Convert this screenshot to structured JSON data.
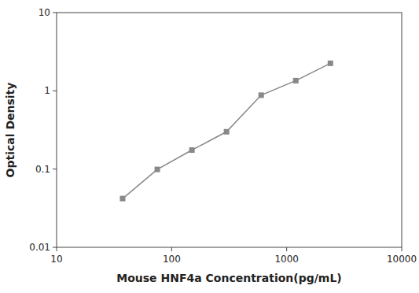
{
  "chart_data": {
    "type": "line",
    "x": [
      37.5,
      75,
      150,
      300,
      600,
      1200,
      2400
    ],
    "values": [
      0.042,
      0.099,
      0.175,
      0.3,
      0.88,
      1.35,
      2.25
    ],
    "xlabel": "Mouse HNF4a Concentration(pg/mL)",
    "ylabel": "Optical Density",
    "xlim": [
      10,
      10000
    ],
    "ylim": [
      0.01,
      10
    ],
    "xticks": [
      10,
      100,
      1000,
      10000
    ],
    "yticks": [
      0.01,
      0.1,
      1,
      10
    ],
    "log": true,
    "grid": false,
    "color": "#888888",
    "marker": "square"
  }
}
